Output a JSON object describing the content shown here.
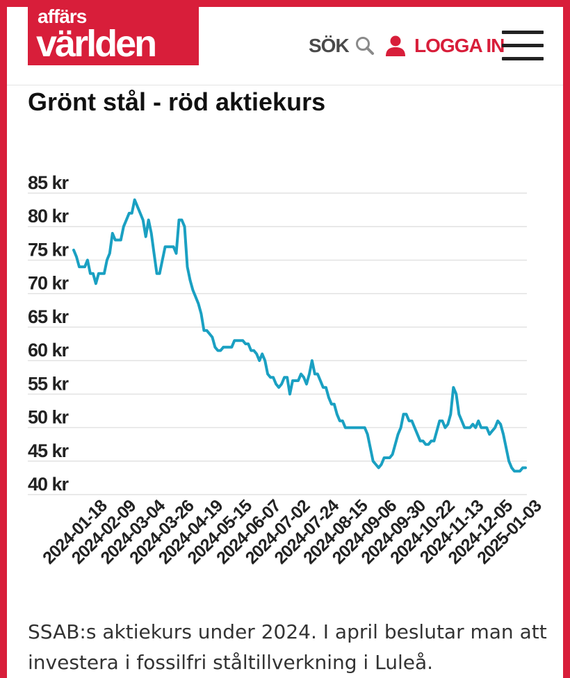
{
  "header": {
    "logo_top": "affärs",
    "logo_bottom": "världen",
    "search_label": "SÖK",
    "login_label": "LOGGA IN",
    "search_icon": "search-icon",
    "login_icon": "user-icon",
    "menu_icon": "hamburger-menu-icon"
  },
  "colors": {
    "brand": "#d81e3a",
    "line": "#1aa0c2",
    "grid": "#e2e2e2"
  },
  "article": {
    "title": "Grönt stål - röd aktiekurs",
    "caption": "SSAB:s aktiekurs under 2024. I april beslutar man att investera i fossilfri ståltillverkning i Luleå."
  },
  "chart_data": {
    "type": "line",
    "title": "",
    "xlabel": "",
    "ylabel": "",
    "ylim": [
      40,
      85
    ],
    "yticks": [
      40,
      45,
      50,
      55,
      60,
      65,
      70,
      75,
      80,
      85
    ],
    "ytick_labels": [
      "40 kr",
      "45 kr",
      "50 kr",
      "55 kr",
      "60 kr",
      "65 kr",
      "70 kr",
      "75 kr",
      "80 kr",
      "85 kr"
    ],
    "grid": true,
    "legend": "none",
    "xticks": [
      "2024-01-18",
      "2024-02-09",
      "2024-03-04",
      "2024-03-26",
      "2024-04-19",
      "2024-05-15",
      "2024-06-07",
      "2024-07-02",
      "2024-07-24",
      "2024-08-15",
      "2024-09-06",
      "2024-09-30",
      "2024-10-22",
      "2024-11-13",
      "2024-12-05",
      "2025-01-03"
    ],
    "series": [
      {
        "values": [
          76.5,
          75.5,
          74,
          74,
          74,
          75,
          73,
          73,
          71.5,
          73,
          73,
          73,
          75,
          76,
          79,
          78,
          78,
          78,
          80,
          81,
          82,
          82,
          84,
          83,
          82,
          81,
          78.5,
          81,
          79,
          76,
          73,
          73,
          75,
          77,
          77,
          77,
          77,
          76,
          81,
          81,
          80,
          74,
          72,
          70.5,
          69.5,
          68.5,
          67,
          64.5,
          64.5,
          64,
          63.5,
          62,
          61.5,
          61.5,
          62,
          62,
          62,
          62,
          63,
          63,
          63,
          63,
          62.5,
          62.5,
          61.5,
          61.5,
          61,
          60,
          61,
          60,
          58,
          57.5,
          57.5,
          56.5,
          56,
          56.5,
          57.5,
          57.5,
          55,
          57,
          57,
          57,
          58,
          57.5,
          56.5,
          58,
          60,
          58,
          58,
          57,
          56,
          56,
          54.5,
          53.5,
          53.5,
          52,
          51,
          51,
          50,
          50,
          50,
          50,
          50,
          50,
          50,
          50,
          49,
          47,
          45,
          44.5,
          44,
          44.5,
          45.5,
          45.5,
          45.5,
          46,
          47.5,
          49,
          50,
          52,
          52,
          51,
          51,
          50,
          49,
          48,
          48,
          47.5,
          47.5,
          48,
          48,
          49.5,
          51,
          51,
          50,
          50.5,
          52,
          56,
          55,
          52,
          51,
          50,
          50,
          50,
          50.5,
          50,
          51,
          50,
          50,
          50,
          49,
          49.5,
          50,
          51,
          50.5,
          49,
          47,
          45,
          44,
          43.5,
          43.5,
          43.5,
          44,
          44
        ]
      }
    ]
  }
}
